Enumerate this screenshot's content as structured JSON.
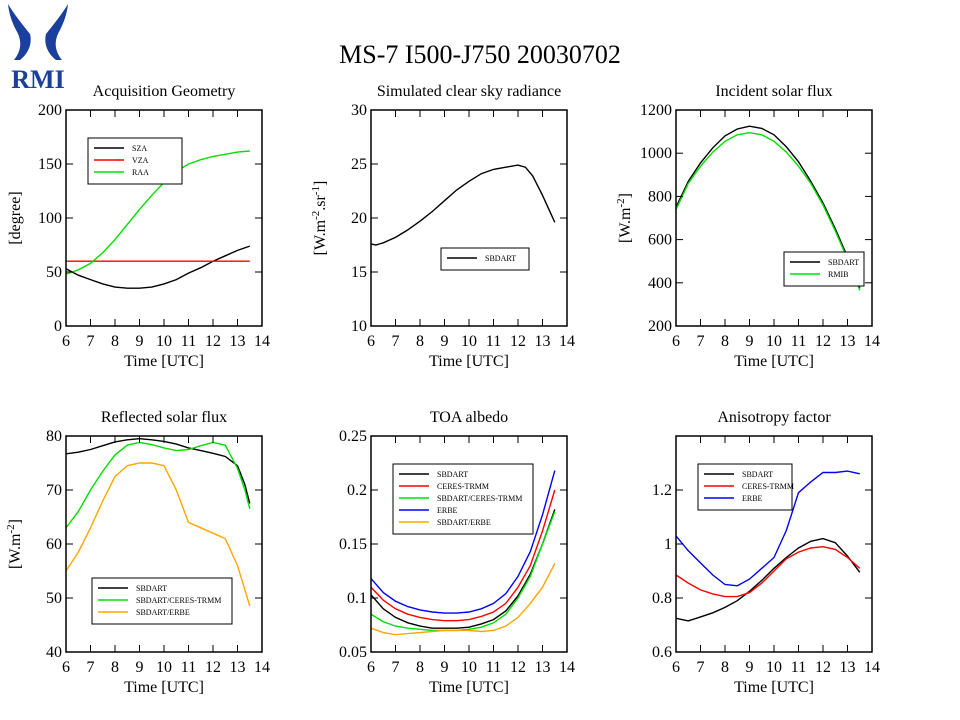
{
  "page": {
    "title": "MS-7 I500-J750 20030702",
    "logo_text": "RMI",
    "logo_color": "#1a3f9c"
  },
  "chart_data": [
    {
      "id": "geometry",
      "type": "line",
      "title": "Acquisition Geometry",
      "xlabel": "Time [UTC]",
      "ylabel": "[degree]",
      "xlim": [
        6,
        14
      ],
      "ylim": [
        0,
        200
      ],
      "xticks": [
        6,
        7,
        8,
        9,
        10,
        11,
        12,
        13,
        14
      ],
      "yticks": [
        0,
        50,
        100,
        150,
        200
      ],
      "ytick_labels": [
        "0",
        "50",
        "100",
        "150",
        "200"
      ],
      "legend": "top-left",
      "series": [
        {
          "name": "SZA",
          "color": "#000000",
          "x": [
            6,
            6.5,
            7,
            7.5,
            8,
            8.5,
            9,
            9.5,
            10,
            10.5,
            11,
            11.5,
            12,
            12.5,
            13,
            13.5
          ],
          "y": [
            53,
            47,
            43,
            39,
            36,
            35,
            35,
            36,
            39,
            43,
            49,
            54,
            60,
            65,
            70,
            74
          ]
        },
        {
          "name": "VZA",
          "color": "#ff0000",
          "x": [
            6,
            13.5
          ],
          "y": [
            60,
            60
          ]
        },
        {
          "name": "RAA",
          "color": "#00e000",
          "x": [
            6,
            6.5,
            7,
            7.5,
            8,
            8.5,
            9,
            9.5,
            10,
            10.5,
            11,
            11.5,
            12,
            12.5,
            13,
            13.5
          ],
          "y": [
            48,
            52,
            58,
            68,
            80,
            94,
            108,
            121,
            133,
            143,
            150,
            154,
            157,
            159,
            161,
            162
          ]
        }
      ]
    },
    {
      "id": "radiance",
      "type": "line",
      "title": "Simulated clear sky radiance",
      "xlabel": "Time [UTC]",
      "ylabel": "[W.m-2.sr-1]",
      "xlim": [
        6,
        14
      ],
      "ylim": [
        10,
        30
      ],
      "xticks": [
        6,
        7,
        8,
        9,
        10,
        11,
        12,
        13,
        14
      ],
      "yticks": [
        10,
        15,
        20,
        25,
        30
      ],
      "ytick_labels": [
        "10",
        "15",
        "20",
        "25",
        "30"
      ],
      "legend": "center-right",
      "series": [
        {
          "name": "SBDART",
          "color": "#000000",
          "x": [
            6,
            6.2,
            6.5,
            7,
            7.5,
            8,
            8.5,
            9,
            9.5,
            10,
            10.5,
            11,
            11.5,
            12,
            12.3,
            12.6,
            13,
            13.5
          ],
          "y": [
            17.6,
            17.5,
            17.7,
            18.2,
            18.9,
            19.7,
            20.6,
            21.6,
            22.6,
            23.4,
            24.1,
            24.5,
            24.7,
            24.9,
            24.7,
            23.9,
            22.1,
            19.6
          ]
        }
      ]
    },
    {
      "id": "incident",
      "type": "line",
      "title": "Incident solar flux",
      "xlabel": "Time [UTC]",
      "ylabel": "[W.m-2]",
      "xlim": [
        6,
        14
      ],
      "ylim": [
        200,
        1200
      ],
      "xticks": [
        6,
        7,
        8,
        9,
        10,
        11,
        12,
        13,
        14
      ],
      "yticks": [
        200,
        400,
        600,
        800,
        1000,
        1200
      ],
      "ytick_labels": [
        "200",
        "400",
        "600",
        "800",
        "1000",
        "1200"
      ],
      "legend": "bottom-right",
      "series": [
        {
          "name": "SBDART",
          "color": "#000000",
          "x": [
            6,
            6.5,
            7,
            7.5,
            8,
            8.5,
            9,
            9.5,
            10,
            10.5,
            11,
            11.5,
            12,
            12.5,
            13,
            13.5
          ],
          "y": [
            750,
            870,
            955,
            1025,
            1080,
            1112,
            1125,
            1115,
            1085,
            1030,
            960,
            870,
            770,
            650,
            520,
            375
          ]
        },
        {
          "name": "RMIB",
          "color": "#00e000",
          "x": [
            6,
            6.5,
            7,
            7.5,
            8,
            8.5,
            9,
            9.5,
            10,
            10.5,
            11,
            11.5,
            12,
            12.5,
            13,
            13.5
          ],
          "y": [
            740,
            860,
            940,
            1005,
            1055,
            1085,
            1095,
            1085,
            1055,
            1005,
            940,
            860,
            760,
            640,
            510,
            365
          ]
        }
      ]
    },
    {
      "id": "reflected",
      "type": "line",
      "title": "Reflected solar flux",
      "xlabel": "Time [UTC]",
      "ylabel": "[W.m-2]",
      "xlim": [
        6,
        14
      ],
      "ylim": [
        40,
        80
      ],
      "xticks": [
        6,
        7,
        8,
        9,
        10,
        11,
        12,
        13,
        14
      ],
      "yticks": [
        40,
        50,
        60,
        70,
        80
      ],
      "ytick_labels": [
        "40",
        "50",
        "60",
        "70",
        "80"
      ],
      "legend": "bottom-left",
      "series": [
        {
          "name": "SBDART",
          "color": "#000000",
          "x": [
            6,
            6.5,
            7,
            7.5,
            8,
            8.5,
            9,
            9.5,
            10,
            10.5,
            11,
            11.5,
            12,
            12.5,
            13,
            13.3,
            13.5
          ],
          "y": [
            76.7,
            77,
            77.5,
            78.2,
            78.9,
            79.3,
            79.5,
            79.3,
            79,
            78.5,
            77.8,
            77.3,
            76.8,
            76.2,
            74.5,
            71,
            67.5
          ]
        },
        {
          "name": "SBDART/CERES-TRMM",
          "color": "#00e000",
          "x": [
            6,
            6.5,
            7,
            7.5,
            8,
            8.5,
            9,
            9.5,
            10,
            10.5,
            11,
            11.5,
            12,
            12.5,
            13,
            13.3,
            13.5
          ],
          "y": [
            63,
            66,
            70,
            73.5,
            76.5,
            78.3,
            78.8,
            78.4,
            77.8,
            77.3,
            77.5,
            78.2,
            78.8,
            78.3,
            74,
            70,
            66.5
          ]
        },
        {
          "name": "SBDART/ERBE",
          "color": "#ffa500",
          "x": [
            6,
            6.5,
            7,
            7.5,
            8,
            8.5,
            9,
            9.5,
            10,
            10.5,
            11,
            11.5,
            12,
            12.5,
            13,
            13.5
          ],
          "y": [
            55,
            58.5,
            63,
            68,
            72.5,
            74.5,
            75,
            75,
            74.5,
            70,
            64,
            63,
            62,
            61,
            56,
            48.5
          ]
        }
      ]
    },
    {
      "id": "albedo",
      "type": "line",
      "title": "TOA albedo",
      "xlabel": "Time [UTC]",
      "ylabel": "",
      "xlim": [
        6,
        14
      ],
      "ylim": [
        0.05,
        0.25
      ],
      "xticks": [
        6,
        7,
        8,
        9,
        10,
        11,
        12,
        13,
        14
      ],
      "yticks": [
        0.05,
        0.1,
        0.15,
        0.2,
        0.25
      ],
      "ytick_labels": [
        "0.05",
        "0.1",
        "0.15",
        "0.2",
        "0.25"
      ],
      "legend": "top-left",
      "series": [
        {
          "name": "SBDART",
          "color": "#000000",
          "x": [
            6,
            6.5,
            7,
            7.5,
            8,
            8.5,
            9,
            9.5,
            10,
            10.5,
            11,
            11.5,
            12,
            12.5,
            13,
            13.5
          ],
          "y": [
            0.103,
            0.09,
            0.082,
            0.077,
            0.074,
            0.072,
            0.072,
            0.072,
            0.073,
            0.076,
            0.08,
            0.088,
            0.102,
            0.122,
            0.15,
            0.182
          ]
        },
        {
          "name": "CERES-TRMM",
          "color": "#ff0000",
          "x": [
            6,
            6.5,
            7,
            7.5,
            8,
            8.5,
            9,
            9.5,
            10,
            10.5,
            11,
            11.5,
            12,
            12.5,
            13,
            13.5
          ],
          "y": [
            0.11,
            0.098,
            0.09,
            0.085,
            0.082,
            0.08,
            0.079,
            0.079,
            0.08,
            0.083,
            0.087,
            0.095,
            0.11,
            0.13,
            0.162,
            0.2
          ]
        },
        {
          "name": "SBDART/CERES-TRMM",
          "color": "#00e000",
          "x": [
            6,
            6.5,
            7,
            7.5,
            8,
            8.5,
            9,
            9.5,
            10,
            10.5,
            11,
            11.5,
            12,
            12.5,
            13,
            13.5
          ],
          "y": [
            0.085,
            0.078,
            0.074,
            0.072,
            0.071,
            0.07,
            0.07,
            0.07,
            0.071,
            0.073,
            0.077,
            0.085,
            0.1,
            0.12,
            0.15,
            0.18
          ]
        },
        {
          "name": "ERBE",
          "color": "#0000ff",
          "x": [
            6,
            6.5,
            7,
            7.5,
            8,
            8.5,
            9,
            9.5,
            10,
            10.5,
            11,
            11.5,
            12,
            12.5,
            13,
            13.5
          ],
          "y": [
            0.118,
            0.105,
            0.097,
            0.092,
            0.089,
            0.087,
            0.086,
            0.086,
            0.087,
            0.09,
            0.095,
            0.104,
            0.12,
            0.143,
            0.177,
            0.218
          ]
        },
        {
          "name": "SBDART/ERBE",
          "color": "#ffa500",
          "x": [
            6,
            6.5,
            7,
            7.5,
            8,
            8.5,
            9,
            9.5,
            10,
            10.5,
            11,
            11.5,
            12,
            12.5,
            13,
            13.5
          ],
          "y": [
            0.072,
            0.068,
            0.066,
            0.067,
            0.068,
            0.069,
            0.07,
            0.07,
            0.07,
            0.069,
            0.07,
            0.074,
            0.082,
            0.095,
            0.11,
            0.132
          ]
        }
      ]
    },
    {
      "id": "anisotropy",
      "type": "line",
      "title": "Anisotropy factor",
      "xlabel": "Time [UTC]",
      "ylabel": "",
      "xlim": [
        6,
        14
      ],
      "ylim": [
        0.6,
        1.4
      ],
      "xticks": [
        6,
        7,
        8,
        9,
        10,
        11,
        12,
        13,
        14
      ],
      "yticks": [
        0.6,
        0.8,
        1.0,
        1.2
      ],
      "ytick_labels": [
        "0.6",
        "0.8",
        "1",
        "1.2"
      ],
      "legend": "top-left",
      "series": [
        {
          "name": "SBDART",
          "color": "#000000",
          "x": [
            6,
            6.5,
            7,
            7.5,
            8,
            8.5,
            9,
            9.5,
            10,
            10.5,
            11,
            11.5,
            12,
            12.5,
            13,
            13.5
          ],
          "y": [
            0.725,
            0.715,
            0.73,
            0.745,
            0.765,
            0.79,
            0.825,
            0.865,
            0.91,
            0.95,
            0.985,
            1.01,
            1.02,
            1.005,
            0.955,
            0.895
          ]
        },
        {
          "name": "CERES-TRMM",
          "color": "#ff0000",
          "x": [
            6,
            6.5,
            7,
            7.5,
            8,
            8.5,
            9,
            9.5,
            10,
            10.5,
            11,
            11.5,
            12,
            12.5,
            13,
            13.5
          ],
          "y": [
            0.885,
            0.855,
            0.83,
            0.815,
            0.805,
            0.805,
            0.82,
            0.855,
            0.9,
            0.945,
            0.97,
            0.985,
            0.99,
            0.98,
            0.95,
            0.91
          ]
        },
        {
          "name": "ERBE",
          "color": "#0000ff",
          "x": [
            6,
            6.5,
            7,
            7.5,
            8,
            8.5,
            9,
            9.5,
            10,
            10.5,
            11,
            11.5,
            12,
            12.5,
            13,
            13.5
          ],
          "y": [
            1.03,
            0.975,
            0.93,
            0.885,
            0.85,
            0.845,
            0.87,
            0.91,
            0.95,
            1.05,
            1.19,
            1.23,
            1.265,
            1.265,
            1.27,
            1.26
          ]
        }
      ]
    }
  ]
}
